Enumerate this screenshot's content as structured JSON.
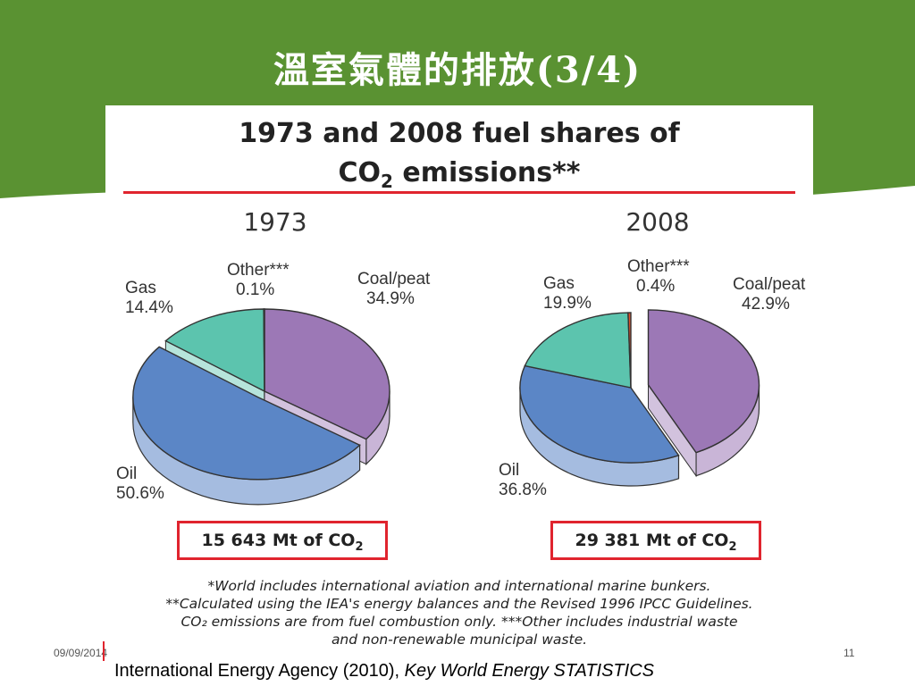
{
  "slide": {
    "title": "溫室氣體的排放(3/4)",
    "date": "09/09/2014",
    "page_number": "11",
    "source_prefix": "International Energy Agency (2010), ",
    "source_title": "Key World Energy STATISTICS"
  },
  "colors": {
    "banner": "#5a9232",
    "rule": "#e0242e",
    "coal_peat": "#9c78b6",
    "oil": "#5b86c6",
    "gas": "#5cc4ae",
    "other": "#e0502c"
  },
  "figure": {
    "title_line1": "1973 and 2008 fuel shares of",
    "title_line2_pre": "CO",
    "title_line2_sub": "2",
    "title_line2_post": " emissions**",
    "notes": [
      "*World includes international aviation and international marine bunkers.",
      "**Calculated using the IEA's energy balances and the Revised 1996 IPCC Guidelines.",
      "CO₂ emissions are from fuel combustion only. ***Other includes industrial waste",
      "and non-renewable municipal waste."
    ]
  },
  "chart_data": [
    {
      "type": "pie",
      "title": "1973",
      "categories": [
        "Coal/peat",
        "Oil",
        "Gas",
        "Other***"
      ],
      "values": [
        34.9,
        50.6,
        14.4,
        0.1
      ],
      "value_labels": [
        "34.9%",
        "50.6%",
        "14.4%",
        "0.1%"
      ],
      "total_pre": "15 643 Mt of CO",
      "total_sub": "2"
    },
    {
      "type": "pie",
      "title": "2008",
      "categories": [
        "Coal/peat",
        "Oil",
        "Gas",
        "Other***"
      ],
      "values": [
        42.9,
        36.8,
        19.9,
        0.4
      ],
      "value_labels": [
        "42.9%",
        "36.8%",
        "19.9%",
        "0.4%"
      ],
      "total_pre": "29 381 Mt of CO",
      "total_sub": "2"
    }
  ]
}
